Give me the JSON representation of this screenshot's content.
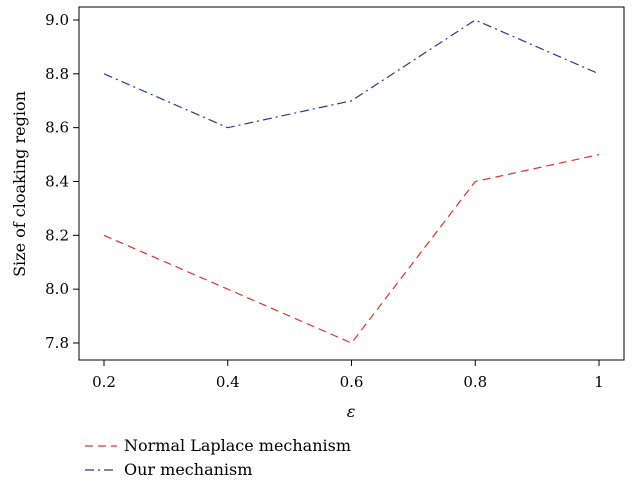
{
  "chart_data": {
    "type": "line",
    "title": "",
    "xlabel": "ε",
    "ylabel": "Size of cloaking region",
    "x": [
      0.2,
      0.4,
      0.6,
      0.8,
      1.0
    ],
    "x_tick_labels": [
      "0.2",
      "0.4",
      "0.6",
      "0.8",
      "1"
    ],
    "y_ticks": [
      7.8,
      8.0,
      8.2,
      8.4,
      8.6,
      8.8,
      9.0
    ],
    "y_tick_labels": [
      "7.8",
      "8.0",
      "8.2",
      "8.4",
      "8.6",
      "8.8",
      "9.0"
    ],
    "xlim": [
      0.2,
      1.0
    ],
    "ylim": [
      7.8,
      9.0
    ],
    "grid": false,
    "legend_position": "bottom-left, below plot",
    "series": [
      {
        "name": "Normal Laplace mechanism",
        "values": [
          8.2,
          8.0,
          7.8,
          8.4,
          8.5
        ],
        "color": "#e8302a",
        "dash": "dashed"
      },
      {
        "name": "Our mechanism",
        "values": [
          8.8,
          8.6,
          8.7,
          9.0,
          8.8
        ],
        "color": "#2b3a8f",
        "dash": "dash-dot"
      }
    ]
  }
}
